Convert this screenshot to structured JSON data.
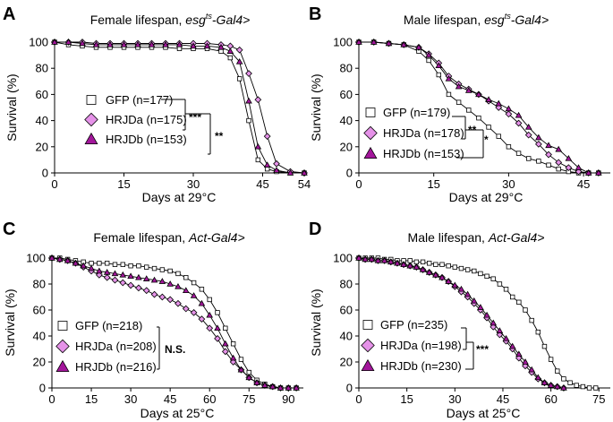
{
  "colors": {
    "gfp": "#ffffff",
    "hrjda": "#e592e8",
    "hrjdb": "#a3169b",
    "line": "#000000"
  },
  "chart_data": [
    {
      "panel": "A",
      "type": "line",
      "title_prefix": "Female lifespan, ",
      "driver_main": "esg",
      "driver_sup": "ts",
      "driver_suffix": "-Gal4>",
      "xlabel": "Days at 29°C",
      "ylabel": "Survival (%)",
      "xlim": [
        0,
        54
      ],
      "ylim": [
        0,
        100
      ],
      "xticks": [
        0,
        15,
        30,
        45,
        54
      ],
      "yticks": [
        0,
        20,
        40,
        60,
        80,
        100
      ],
      "series": [
        {
          "name": "GFP",
          "legend": "GFP (n=177)",
          "marker": "square",
          "x": [
            0,
            3,
            6,
            9,
            12,
            15,
            18,
            21,
            24,
            27,
            30,
            33,
            36,
            38,
            40,
            42,
            44,
            46,
            48,
            51,
            54
          ],
          "y": [
            100,
            98,
            97,
            96,
            96,
            96,
            96,
            96,
            96,
            95,
            95,
            95,
            93,
            88,
            72,
            40,
            10,
            3,
            1,
            0,
            0
          ]
        },
        {
          "name": "HRJDa",
          "legend": "HRJDa (n=175)",
          "marker": "diamond",
          "x": [
            0,
            3,
            6,
            9,
            12,
            15,
            18,
            21,
            24,
            27,
            30,
            33,
            36,
            38,
            40,
            42,
            44,
            46,
            48,
            51,
            54
          ],
          "y": [
            100,
            100,
            100,
            99,
            99,
            99,
            99,
            99,
            99,
            99,
            99,
            99,
            98,
            97,
            94,
            76,
            56,
            28,
            7,
            1,
            0
          ]
        },
        {
          "name": "HRJDb",
          "legend": "HRJDb (n=153)",
          "marker": "triangle",
          "x": [
            0,
            3,
            6,
            9,
            12,
            15,
            18,
            21,
            24,
            27,
            30,
            33,
            36,
            38,
            40,
            42,
            44,
            46,
            48,
            51,
            54
          ],
          "y": [
            100,
            100,
            99,
            98,
            98,
            98,
            98,
            98,
            98,
            98,
            97,
            97,
            96,
            93,
            85,
            55,
            20,
            6,
            2,
            0,
            0
          ]
        }
      ],
      "stats": {
        "inner": "***",
        "outer": "**"
      }
    },
    {
      "panel": "B",
      "type": "line",
      "title_prefix": "Male lifespan, ",
      "driver_main": "esg",
      "driver_sup": "ts",
      "driver_suffix": "-Gal4>",
      "xlabel": "Days at 29°C",
      "ylabel": "Survival (%)",
      "xlim": [
        0,
        50
      ],
      "ylim": [
        0,
        100
      ],
      "xticks": [
        0,
        15,
        30,
        45
      ],
      "yticks": [
        0,
        20,
        40,
        60,
        80,
        100
      ],
      "series": [
        {
          "name": "GFP",
          "legend": "GFP (n=179)",
          "marker": "square",
          "x": [
            0,
            3,
            6,
            9,
            12,
            14,
            16,
            18,
            20,
            22,
            24,
            26,
            28,
            30,
            32,
            34,
            36,
            38,
            40,
            42,
            44,
            46,
            48
          ],
          "y": [
            100,
            100,
            99,
            98,
            93,
            86,
            75,
            60,
            54,
            48,
            42,
            35,
            28,
            20,
            15,
            11,
            9,
            6,
            3,
            1,
            0,
            0,
            0
          ]
        },
        {
          "name": "HRJDa",
          "legend": "HRJDa (n=178)",
          "marker": "diamond",
          "x": [
            0,
            3,
            6,
            9,
            12,
            14,
            16,
            18,
            20,
            22,
            24,
            26,
            28,
            30,
            32,
            34,
            36,
            38,
            40,
            42,
            44,
            46,
            48
          ],
          "y": [
            100,
            100,
            99,
            98,
            96,
            91,
            84,
            74,
            68,
            64,
            60,
            55,
            50,
            45,
            38,
            29,
            22,
            14,
            8,
            4,
            1,
            0,
            0
          ]
        },
        {
          "name": "HRJDb",
          "legend": "HRJDb (n=153)",
          "marker": "triangle",
          "x": [
            0,
            3,
            6,
            9,
            12,
            14,
            16,
            18,
            20,
            22,
            24,
            26,
            28,
            30,
            32,
            34,
            36,
            38,
            40,
            42,
            44,
            46,
            48
          ],
          "y": [
            100,
            100,
            99,
            98,
            96,
            90,
            82,
            72,
            66,
            63,
            60,
            56,
            53,
            49,
            44,
            35,
            27,
            21,
            18,
            11,
            4,
            0,
            0
          ]
        }
      ],
      "stats": {
        "inner": "**",
        "outer": "*"
      }
    },
    {
      "panel": "C",
      "type": "line",
      "title_prefix": "Female lifespan, ",
      "driver_main": "Act-Gal4>",
      "driver_sup": "",
      "driver_suffix": "",
      "xlabel": "Days at 25°C",
      "ylabel": "Survival (%)",
      "xlim": [
        0,
        95
      ],
      "ylim": [
        0,
        100
      ],
      "xticks": [
        0,
        15,
        30,
        45,
        60,
        75,
        90
      ],
      "yticks": [
        0,
        20,
        40,
        60,
        80,
        100
      ],
      "series": [
        {
          "name": "GFP",
          "legend": "GFP (n=218)",
          "marker": "square",
          "x": [
            0,
            3,
            6,
            9,
            12,
            15,
            18,
            21,
            24,
            27,
            30,
            33,
            36,
            39,
            42,
            45,
            48,
            51,
            54,
            57,
            60,
            63,
            66,
            69,
            72,
            75,
            78,
            81,
            84,
            87,
            90,
            93
          ],
          "y": [
            100,
            100,
            99,
            98,
            97,
            96,
            96,
            96,
            95,
            95,
            94,
            94,
            93,
            92,
            91,
            90,
            88,
            85,
            81,
            76,
            68,
            58,
            46,
            34,
            22,
            12,
            6,
            3,
            1,
            0,
            0,
            0
          ]
        },
        {
          "name": "HRJDa",
          "legend": "HRJDa (n=208)",
          "marker": "diamond",
          "x": [
            0,
            3,
            6,
            9,
            12,
            15,
            18,
            21,
            24,
            27,
            30,
            33,
            36,
            39,
            42,
            45,
            48,
            51,
            54,
            57,
            60,
            63,
            66,
            69,
            72,
            75,
            78,
            81,
            84,
            87,
            90,
            93
          ],
          "y": [
            100,
            99,
            98,
            96,
            93,
            90,
            87,
            85,
            83,
            81,
            79,
            77,
            75,
            72,
            70,
            68,
            65,
            61,
            58,
            53,
            46,
            38,
            28,
            20,
            14,
            8,
            4,
            2,
            1,
            0,
            0,
            0
          ]
        },
        {
          "name": "HRJDb",
          "legend": "HRJDb (n=216)",
          "marker": "triangle",
          "x": [
            0,
            3,
            6,
            9,
            12,
            15,
            18,
            21,
            24,
            27,
            30,
            33,
            36,
            39,
            42,
            45,
            48,
            51,
            54,
            57,
            60,
            63,
            66,
            69,
            72,
            75,
            78,
            81,
            84,
            87,
            90,
            93
          ],
          "y": [
            100,
            99,
            98,
            96,
            94,
            92,
            90,
            89,
            88,
            87,
            86,
            85,
            84,
            83,
            82,
            80,
            78,
            75,
            71,
            65,
            56,
            46,
            34,
            23,
            14,
            8,
            4,
            2,
            1,
            0,
            0,
            0
          ]
        }
      ],
      "stats": {
        "inner": "N.S.",
        "outer": ""
      }
    },
    {
      "panel": "D",
      "type": "line",
      "title_prefix": "Male lifespan, ",
      "driver_main": "Act-Gal4>",
      "driver_sup": "",
      "driver_suffix": "",
      "xlabel": "Days at 25°C",
      "ylabel": "Survival (%)",
      "xlim": [
        0,
        78
      ],
      "ylim": [
        0,
        100
      ],
      "xticks": [
        0,
        15,
        30,
        45,
        60,
        75
      ],
      "yticks": [
        0,
        20,
        40,
        60,
        80,
        100
      ],
      "series": [
        {
          "name": "GFP",
          "legend": "GFP (n=235)",
          "marker": "square",
          "x": [
            0,
            2,
            4,
            6,
            8,
            10,
            12,
            14,
            16,
            18,
            20,
            22,
            24,
            26,
            28,
            30,
            32,
            34,
            36,
            38,
            40,
            42,
            44,
            46,
            48,
            50,
            52,
            54,
            56,
            58,
            60,
            62,
            64,
            66,
            68,
            70,
            72,
            74
          ],
          "y": [
            100,
            100,
            100,
            100,
            99,
            99,
            98,
            98,
            98,
            97,
            97,
            96,
            95,
            95,
            94,
            93,
            92,
            91,
            90,
            88,
            86,
            84,
            80,
            76,
            70,
            66,
            60,
            52,
            43,
            32,
            22,
            13,
            7,
            4,
            2,
            1,
            0,
            0
          ]
        },
        {
          "name": "HRJDa",
          "legend": "HRJDa (n=198)",
          "marker": "diamond",
          "x": [
            0,
            2,
            4,
            6,
            8,
            10,
            12,
            14,
            16,
            18,
            20,
            22,
            24,
            26,
            28,
            30,
            32,
            34,
            36,
            38,
            40,
            42,
            44,
            46,
            48,
            50,
            52,
            54,
            56,
            58,
            60,
            62,
            64
          ],
          "y": [
            100,
            99,
            99,
            98,
            98,
            97,
            96,
            95,
            94,
            93,
            91,
            89,
            87,
            85,
            82,
            78,
            74,
            70,
            65,
            60,
            54,
            47,
            41,
            36,
            30,
            23,
            17,
            12,
            7,
            4,
            2,
            1,
            0
          ]
        },
        {
          "name": "HRJDb",
          "legend": "HRJDb (n=230)",
          "marker": "triangle",
          "x": [
            0,
            2,
            4,
            6,
            8,
            10,
            12,
            14,
            16,
            18,
            20,
            22,
            24,
            26,
            28,
            30,
            32,
            34,
            36,
            38,
            40,
            42,
            44,
            46,
            48,
            50,
            52,
            54,
            56,
            58,
            60,
            62,
            64
          ],
          "y": [
            100,
            99,
            99,
            98,
            98,
            97,
            96,
            95,
            94,
            93,
            91,
            89,
            87,
            85,
            82,
            79,
            76,
            72,
            67,
            62,
            56,
            50,
            44,
            38,
            32,
            26,
            20,
            14,
            8,
            4,
            2,
            1,
            0
          ]
        }
      ],
      "stats": {
        "inner": "***",
        "outer": ""
      }
    }
  ]
}
